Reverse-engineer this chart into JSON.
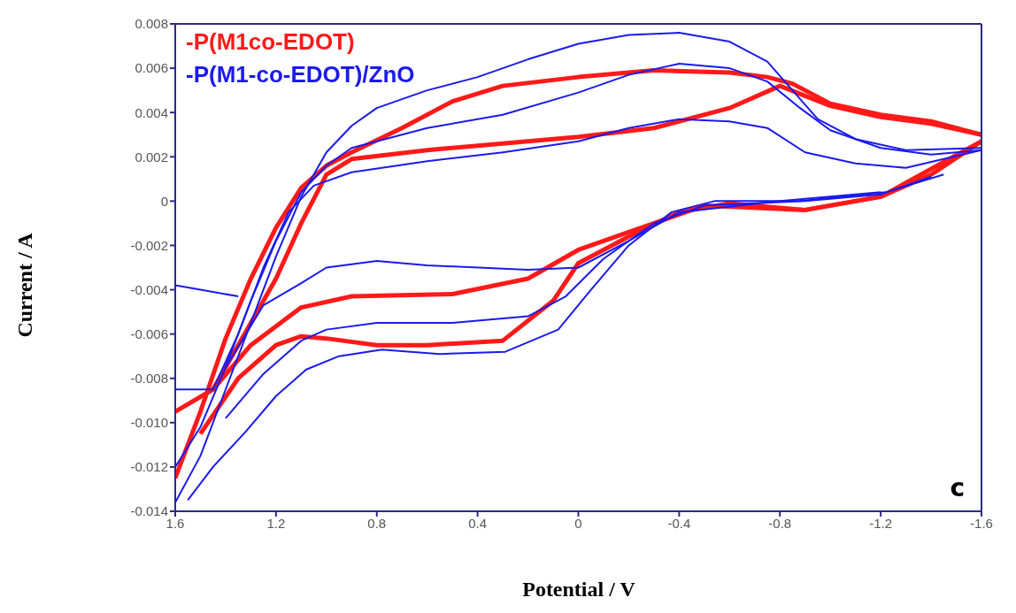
{
  "chart_data": {
    "type": "line",
    "xlabel": "Potential / V",
    "ylabel": "Current / A",
    "annotations": [
      "c"
    ],
    "xlim": [
      1.6,
      -1.6
    ],
    "xticks": [
      1.6,
      1.2,
      0.8,
      0.4,
      0,
      -0.4,
      -0.8,
      -1.2,
      -1.6
    ],
    "ylim": [
      -0.014,
      0.008
    ],
    "yticks": [
      0.008,
      0.006,
      0.004,
      0.002,
      0,
      -0.002,
      -0.004,
      -0.006,
      -0.008,
      {
        "value": -0.01,
        "label": "-0.010"
      },
      -0.012,
      -0.014
    ],
    "legend": "top left",
    "marker": "none",
    "line_style": "solid",
    "series": [
      {
        "name": "-P(M1co-EDOT)",
        "color": "#ff1a1a",
        "x": [
          1.6,
          1.5,
          1.4,
          1.3,
          1.2,
          1.1,
          1.0,
          0.9,
          0.7,
          0.5,
          0.3,
          0,
          -0.3,
          -0.6,
          -0.75,
          -0.85,
          -1.0,
          -1.2,
          -1.4,
          -1.6
        ],
        "values": [
          -0.0125,
          -0.0095,
          -0.0062,
          -0.0035,
          -0.0012,
          0.0006,
          0.0016,
          0.0022,
          0.0033,
          0.0045,
          0.0052,
          0.0056,
          0.0059,
          0.0058,
          0.0056,
          0.0053,
          0.0044,
          0.0039,
          0.0036,
          0.003
        ]
      },
      {
        "color": "#ff1a1a",
        "x": [
          -1.6,
          -1.4,
          -1.2,
          -0.9,
          -0.6,
          -0.4,
          -0.2,
          0,
          0.1,
          0.3,
          0.6,
          0.8,
          1.0,
          1.1,
          1.2,
          1.35,
          1.5
        ],
        "values": [
          0.0027,
          0.0012,
          0.0002,
          -0.0004,
          -0.0001,
          -0.0005,
          -0.0016,
          -0.0028,
          -0.0045,
          -0.0063,
          -0.0065,
          -0.0065,
          -0.0062,
          -0.0061,
          -0.0065,
          -0.008,
          -0.0105
        ]
      },
      {
        "color": "#ff1a1a",
        "x": [
          1.6,
          1.45,
          1.35,
          1.2,
          1.1,
          1.0,
          0.9,
          0.6,
          0.3,
          0,
          -0.3,
          -0.6,
          -0.8,
          -1.0,
          -1.2,
          -1.4,
          -1.6
        ],
        "values": [
          -0.0095,
          -0.0085,
          -0.0065,
          -0.0035,
          -0.001,
          0.0012,
          0.0019,
          0.0023,
          0.0026,
          0.0029,
          0.0033,
          0.0042,
          0.0052,
          0.0043,
          0.0038,
          0.0035,
          0.003
        ]
      },
      {
        "color": "#ff1a1a",
        "x": [
          -1.6,
          -1.2,
          -0.9,
          -0.5,
          -0.2,
          0,
          0.2,
          0.5,
          0.9,
          1.1,
          1.3,
          1.45
        ],
        "values": [
          0.0027,
          0.0002,
          -0.0004,
          -0.0002,
          -0.0014,
          -0.0022,
          -0.0035,
          -0.0042,
          -0.0043,
          -0.0048,
          -0.0065,
          -0.0085
        ]
      },
      {
        "name": "-P(M1-co-EDOT)/ZnO",
        "color": "#1a1aee",
        "x": [
          1.6,
          1.5,
          1.4,
          1.3,
          1.2,
          1.1,
          1.0,
          0.9,
          0.8,
          0.6,
          0.4,
          0.2,
          0,
          -0.2,
          -0.4,
          -0.6,
          -0.75,
          -0.85,
          -0.95,
          -1.1,
          -1.3,
          -1.6
        ],
        "values": [
          -0.0136,
          -0.0115,
          -0.0085,
          -0.0055,
          -0.0025,
          0.0002,
          0.0022,
          0.0034,
          0.0042,
          0.005,
          0.0056,
          0.0064,
          0.0071,
          0.0075,
          0.0076,
          0.0072,
          0.0063,
          0.005,
          0.0037,
          0.0028,
          0.0023,
          0.0024
        ]
      },
      {
        "color": "#1a1aee",
        "x": [
          -1.45,
          -1.22,
          -0.88,
          -0.54,
          -0.37,
          -0.2,
          -0.05,
          0.08,
          0.29,
          0.55,
          0.78,
          0.95,
          1.08,
          1.2,
          1.32,
          1.45,
          1.55
        ],
        "values": [
          0.0012,
          0.0004,
          0,
          0,
          -0.0005,
          -0.002,
          -0.004,
          -0.0058,
          -0.0068,
          -0.0069,
          -0.0067,
          -0.007,
          -0.0076,
          -0.0088,
          -0.0104,
          -0.012,
          -0.0135
        ]
      },
      {
        "color": "#1a1aee",
        "x": [
          1.6,
          1.5,
          1.4,
          1.3,
          1.2,
          1.1,
          1.0,
          0.9,
          0.6,
          0.3,
          0,
          -0.2,
          -0.4,
          -0.6,
          -0.75,
          -0.88,
          -1.0,
          -1.2,
          -1.4,
          -1.6
        ],
        "values": [
          -0.012,
          -0.0102,
          -0.0075,
          -0.0045,
          -0.0018,
          0.0004,
          0.0016,
          0.0024,
          0.0033,
          0.0039,
          0.0049,
          0.0057,
          0.0062,
          0.006,
          0.0054,
          0.0042,
          0.0032,
          0.0024,
          0.0021,
          0.0023
        ]
      },
      {
        "color": "#1a1aee",
        "x": [
          -1.4,
          -1.2,
          -0.9,
          -0.5,
          -0.3,
          -0.1,
          0.05,
          0.2,
          0.5,
          0.8,
          1.0,
          1.1,
          1.25,
          1.4
        ],
        "values": [
          0.0011,
          0.0003,
          0,
          -0.0002,
          -0.001,
          -0.0026,
          -0.0043,
          -0.0052,
          -0.0055,
          -0.0055,
          -0.0058,
          -0.0063,
          -0.0078,
          -0.0098
        ]
      },
      {
        "color": "#1a1aee",
        "x": [
          1.6,
          1.45,
          1.35,
          1.25,
          1.15,
          1.05,
          0.9,
          0.6,
          0.3,
          0,
          -0.2,
          -0.4,
          -0.6,
          -0.75,
          -0.9,
          -1.1,
          -1.3,
          -1.6
        ],
        "values": [
          -0.0085,
          -0.0085,
          -0.006,
          -0.003,
          -0.0005,
          0.0007,
          0.0013,
          0.0018,
          0.0022,
          0.0027,
          0.0033,
          0.0037,
          0.0036,
          0.0033,
          0.0022,
          0.0017,
          0.0015,
          0.0023
        ]
      },
      {
        "color": "#1a1aee",
        "x": [
          -1.2,
          -0.8,
          -0.4,
          -0.2,
          0,
          0.2,
          0.6,
          0.8,
          1.0,
          1.1,
          1.25,
          1.4
        ],
        "values": [
          0.0004,
          0,
          -0.0005,
          -0.0018,
          -0.003,
          -0.0031,
          -0.0029,
          -0.0027,
          -0.003,
          -0.0037,
          -0.0047,
          -0.0075
        ]
      },
      {
        "color": "#1a1aee",
        "x": [
          1.6,
          1.45,
          1.35
        ],
        "values": [
          -0.0038,
          -0.0041,
          -0.0043
        ]
      }
    ]
  }
}
